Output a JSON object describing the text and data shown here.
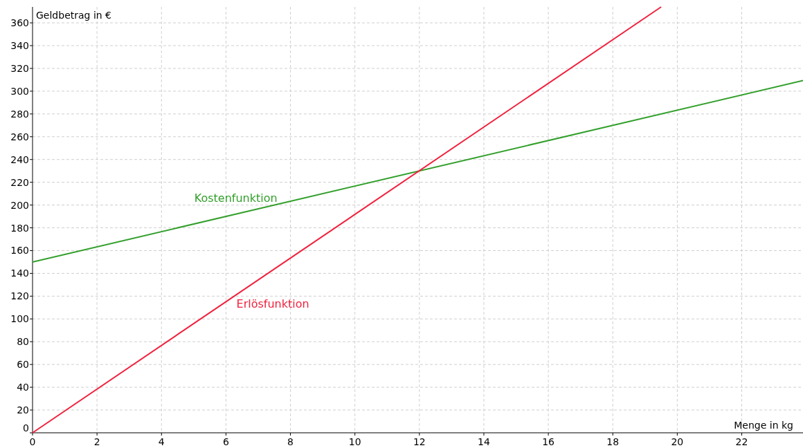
{
  "chart_data": {
    "type": "line",
    "xlabel": "Menge in kg",
    "ylabel": "Geldbetrag in €",
    "xlim": [
      0,
      23.9
    ],
    "ylim": [
      0,
      374
    ],
    "xticks": [
      0,
      2,
      4,
      6,
      8,
      10,
      12,
      14,
      16,
      18,
      20,
      22
    ],
    "yticks": [
      0,
      20,
      40,
      60,
      80,
      100,
      120,
      140,
      160,
      180,
      200,
      220,
      240,
      260,
      280,
      300,
      320,
      340,
      360
    ],
    "grid": true,
    "marker": "none",
    "line_style": "solid",
    "series": [
      {
        "name": "Kostenfunktion",
        "color": "#33a02c",
        "x": [
          0,
          23.9
        ],
        "values": [
          150,
          309.3
        ]
      },
      {
        "name": "Erlösfunktion",
        "color": "#f0213d",
        "x": [
          0,
          19.5
        ],
        "values": [
          0,
          374
        ]
      }
    ]
  }
}
